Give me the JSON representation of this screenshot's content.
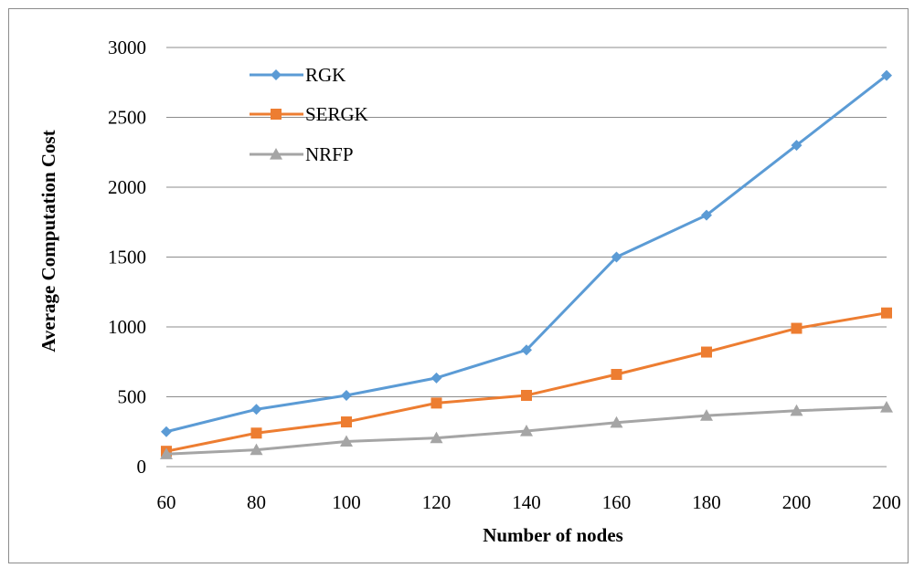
{
  "chart_data": {
    "type": "line",
    "title": "",
    "xlabel": "Number of nodes",
    "ylabel": "Average Computation Cost",
    "categories": [
      "60",
      "80",
      "100",
      "120",
      "140",
      "160",
      "180",
      "200",
      "200"
    ],
    "ylim": [
      0,
      3000
    ],
    "yticks": [
      0,
      500,
      1000,
      1500,
      2000,
      2500,
      3000
    ],
    "grid": true,
    "legend_position": "top-left",
    "series": [
      {
        "name": "RGK",
        "color": "#5b9bd5",
        "marker": "diamond",
        "values": [
          250,
          410,
          510,
          635,
          835,
          1500,
          1800,
          2300,
          2800
        ]
      },
      {
        "name": "SERGK",
        "color": "#ed7d31",
        "marker": "square",
        "values": [
          110,
          240,
          320,
          455,
          510,
          660,
          820,
          990,
          1100
        ]
      },
      {
        "name": "NRFP",
        "color": "#a5a5a5",
        "marker": "triangle",
        "values": [
          90,
          120,
          180,
          205,
          255,
          315,
          365,
          400,
          425
        ]
      }
    ]
  }
}
